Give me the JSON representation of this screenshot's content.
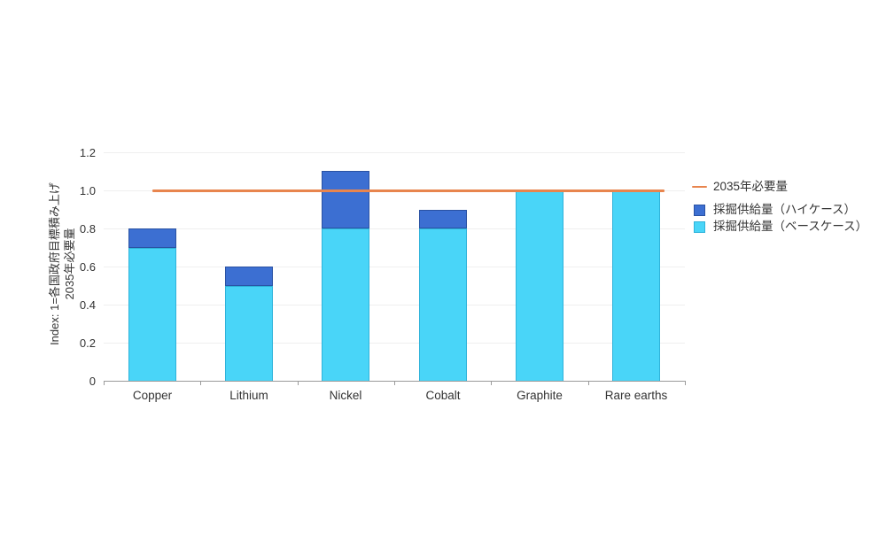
{
  "chart_data": {
    "type": "bar",
    "stacked": true,
    "title": "",
    "categories": [
      "Copper",
      "Lithium",
      "Nickel",
      "Cobalt",
      "Graphite",
      "Rare earths"
    ],
    "series": [
      {
        "name": "採掘供給量（ベースケース）",
        "role": "base-case",
        "color": "#49d5f8",
        "border_color": "#2fb3da",
        "values": [
          0.7,
          0.5,
          0.8,
          0.8,
          1.0,
          1.0
        ]
      },
      {
        "name": "採掘供給量（ハイケース）",
        "role": "high-case-increment",
        "color": "#3c6fd2",
        "border_color": "#2a52a3",
        "values": [
          0.1,
          0.1,
          0.3,
          0.1,
          0.0,
          0.0
        ]
      }
    ],
    "stack_totals_high_case": [
      0.8,
      0.6,
      1.1,
      0.9,
      1.0,
      1.0
    ],
    "reference_line": {
      "label": "2035年必要量",
      "value": 1.0,
      "color": "#e8854e"
    },
    "ylabel_line1": "Index: 1=各国政府目標積み上げ",
    "ylabel_line2": "2035年必要量",
    "xlabel": "",
    "ylim": [
      0,
      1.2
    ],
    "ytick_values": [
      0,
      0.2,
      0.4,
      0.6,
      0.8,
      1.0,
      1.2
    ],
    "ytick_labels": [
      "0",
      "0.2",
      "0.4",
      "0.6",
      "0.8",
      "1.0",
      "1.2"
    ],
    "grid": true,
    "legend_position": "right",
    "colors": {
      "grid": "#efefef",
      "axis": "#9a9a9a",
      "text": "#333333",
      "background": "#ffffff"
    }
  },
  "legend": {
    "items": [
      {
        "label": "2035年必要量",
        "marker": "line",
        "color": "#e8854e"
      },
      {
        "label": "採掘供給量（ハイケース）",
        "marker": "square",
        "color": "#3c6fd2",
        "border_color": "#2a52a3"
      },
      {
        "label": "採掘供給量（ベースケース）",
        "marker": "square",
        "color": "#49d5f8",
        "border_color": "#2fb3da"
      }
    ]
  }
}
